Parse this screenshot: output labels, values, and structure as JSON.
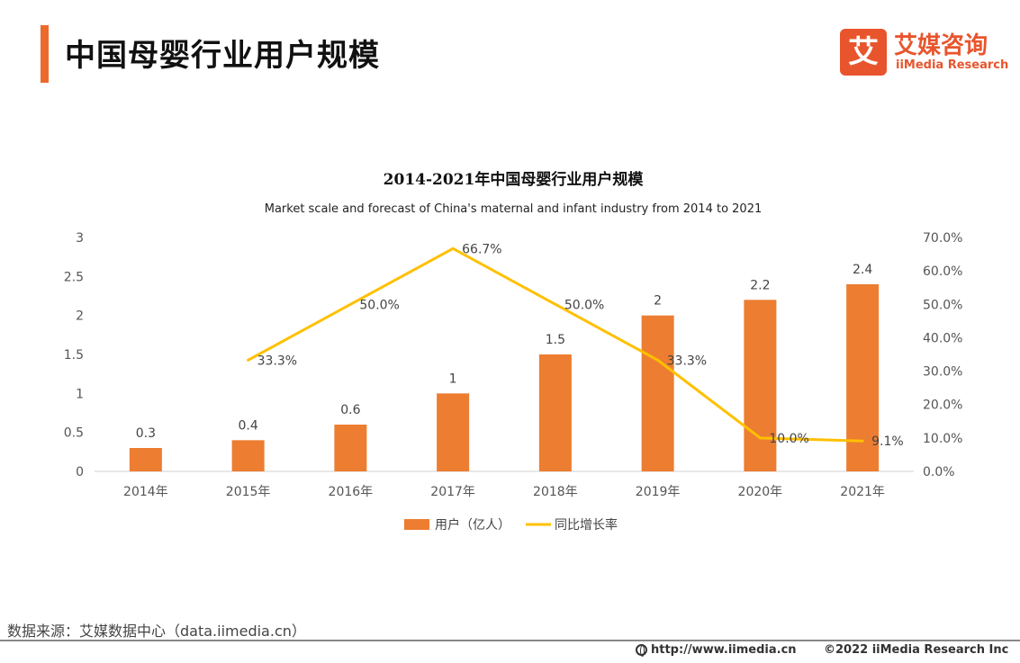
{
  "header": {
    "title": "中国母婴行业用户规模",
    "logo_cn": "艾媒咨询",
    "logo_en": "iiMedia Research",
    "logo_glyph": "艾"
  },
  "colors": {
    "accent": "#ec6a2c",
    "bar": "#ed7d31",
    "line": "#ffc000"
  },
  "chart_data": {
    "type": "bar",
    "title": "2014-2021年中国母婴行业用户规模",
    "subtitle": "Market scale and forecast of China's maternal and infant industry from 2014 to 2021",
    "categories": [
      "2014年",
      "2015年",
      "2016年",
      "2017年",
      "2018年",
      "2019年",
      "2020年",
      "2021年"
    ],
    "series": [
      {
        "name": "用户（亿人）",
        "type": "bar",
        "axis": "left",
        "values": [
          0.3,
          0.4,
          0.6,
          1,
          1.5,
          2,
          2.2,
          2.4
        ],
        "labels": [
          "0.3",
          "0.4",
          "0.6",
          "1",
          "1.5",
          "2",
          "2.2",
          "2.4"
        ]
      },
      {
        "name": "同比增长率",
        "type": "line",
        "axis": "right",
        "values": [
          null,
          33.3,
          50.0,
          66.7,
          50.0,
          33.3,
          10.0,
          9.1
        ],
        "labels": [
          "",
          "33.3%",
          "50.0%",
          "66.7%",
          "50.0%",
          "33.3%",
          "10.0%",
          "9.1%"
        ]
      }
    ],
    "ylim_left": [
      0,
      3
    ],
    "yticks_left": [
      "0",
      "0.5",
      "1",
      "1.5",
      "2",
      "2.5",
      "3"
    ],
    "ylim_right": [
      0,
      70
    ],
    "yticks_right": [
      "0.0%",
      "10.0%",
      "20.0%",
      "30.0%",
      "40.0%",
      "50.0%",
      "60.0%",
      "70.0%"
    ],
    "grid": false,
    "legend_position": "bottom"
  },
  "footer": {
    "source": "数据来源：艾媒数据中心（data.iimedia.cn）",
    "url": "http://www.iimedia.cn",
    "copyright": "©2022  iiMedia Research  Inc"
  }
}
